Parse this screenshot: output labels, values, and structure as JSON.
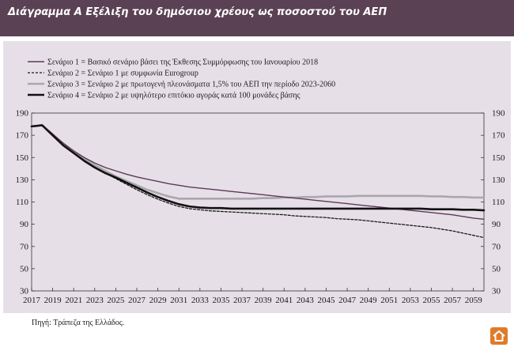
{
  "header": {
    "title": "Διάγραμμα Α  Εξέλιξη του δημόσιου χρέους ως ποσοστού του ΑΕΠ"
  },
  "source": "Πηγή: Τράπεζα της Ελλάδος.",
  "colors": {
    "header_bg": "#5b4154",
    "panel_bg": "#e7dfe8",
    "scenario1": "#5a3a56",
    "scenario2": "#1a1a1a",
    "scenario3": "#a9a7ab",
    "scenario4": "#111111",
    "logo": "#e07b2a"
  },
  "logo_icon": "house-logo-icon",
  "chart_data": {
    "type": "line",
    "title": "",
    "xlabel": "",
    "ylabel": "",
    "ylim": [
      30,
      190
    ],
    "xlim": [
      2017,
      2060
    ],
    "yticks": [
      30,
      50,
      70,
      90,
      110,
      130,
      150,
      170,
      190
    ],
    "xticks": [
      2017,
      2019,
      2021,
      2023,
      2025,
      2027,
      2029,
      2031,
      2033,
      2035,
      2037,
      2039,
      2041,
      2043,
      2045,
      2047,
      2049,
      2051,
      2053,
      2055,
      2057,
      2059
    ],
    "grid": false,
    "legend_position": "top-left",
    "x": [
      2017,
      2018,
      2019,
      2020,
      2021,
      2022,
      2023,
      2024,
      2025,
      2026,
      2027,
      2028,
      2029,
      2030,
      2031,
      2032,
      2033,
      2034,
      2035,
      2036,
      2037,
      2038,
      2039,
      2040,
      2041,
      2042,
      2043,
      2044,
      2045,
      2046,
      2047,
      2048,
      2049,
      2050,
      2051,
      2052,
      2053,
      2054,
      2055,
      2056,
      2057,
      2058,
      2059,
      2060
    ],
    "series": [
      {
        "name": "Σενάριο 1 = Βασικό σενάριο βάσει της Έκθεσης Συμμόρφωσης του Ιανουαρίου 2018",
        "style": "solid",
        "values": [
          178,
          179,
          171,
          163,
          156,
          150,
          145,
          141,
          138,
          135,
          132.5,
          130.5,
          128.5,
          126.5,
          125,
          123.5,
          122.5,
          121.5,
          120.5,
          119.5,
          118.5,
          117.5,
          116.5,
          115.5,
          114.5,
          113.5,
          112.5,
          111.5,
          110.5,
          109.5,
          108.5,
          107.5,
          106.5,
          105.5,
          104.5,
          103.5,
          102.5,
          101.5,
          100.5,
          99.5,
          98.5,
          97,
          95.5,
          94.5
        ]
      },
      {
        "name": "Σενάριο 2 = Σενάριο 1 με συμφωνία Eurogroup",
        "style": "dashed",
        "values": [
          178,
          179,
          170,
          161,
          154,
          147,
          141,
          136,
          131,
          126,
          121,
          116.5,
          112.5,
          109,
          106,
          104,
          103,
          102,
          101.5,
          101,
          100.5,
          100,
          99.5,
          99,
          98.5,
          97.5,
          97,
          96.5,
          96,
          95,
          94.5,
          94,
          93,
          92,
          91,
          90,
          89,
          88,
          87,
          85.5,
          84,
          82,
          80,
          78
        ]
      },
      {
        "name": "Σενάριο 3 = Σενάριο 2 με πρωτογενή πλεονάσματα 1,5% του ΑΕΠ την περίοδο 2023-2060",
        "style": "solid",
        "values": [
          178,
          179,
          171,
          162,
          155,
          149,
          143,
          138,
          133,
          129,
          125,
          121,
          118,
          115,
          113,
          113,
          113,
          113,
          113,
          113,
          113,
          113,
          113.5,
          113.5,
          114,
          114,
          114.5,
          114.5,
          115,
          115,
          115,
          115.5,
          115.5,
          115.5,
          115.5,
          115.5,
          115.5,
          115.5,
          115,
          115,
          114.5,
          114.5,
          114,
          114
        ]
      },
      {
        "name": "Σενάριο 4 = Σενάριο 2 με υψηλότερο επιτόκιο αγοράς κατά 100 μονάδες βάσης",
        "style": "bold",
        "values": [
          178,
          179,
          170,
          161,
          154,
          147,
          141,
          136,
          132,
          127.5,
          123,
          118.5,
          114.5,
          111,
          108,
          106,
          105,
          104.5,
          104.5,
          104,
          104,
          104,
          104,
          104,
          104,
          104,
          104,
          104,
          104,
          104,
          104,
          104,
          104,
          104,
          104,
          104,
          104,
          104,
          103.5,
          103.5,
          103.5,
          103,
          103,
          102.5
        ]
      }
    ]
  }
}
